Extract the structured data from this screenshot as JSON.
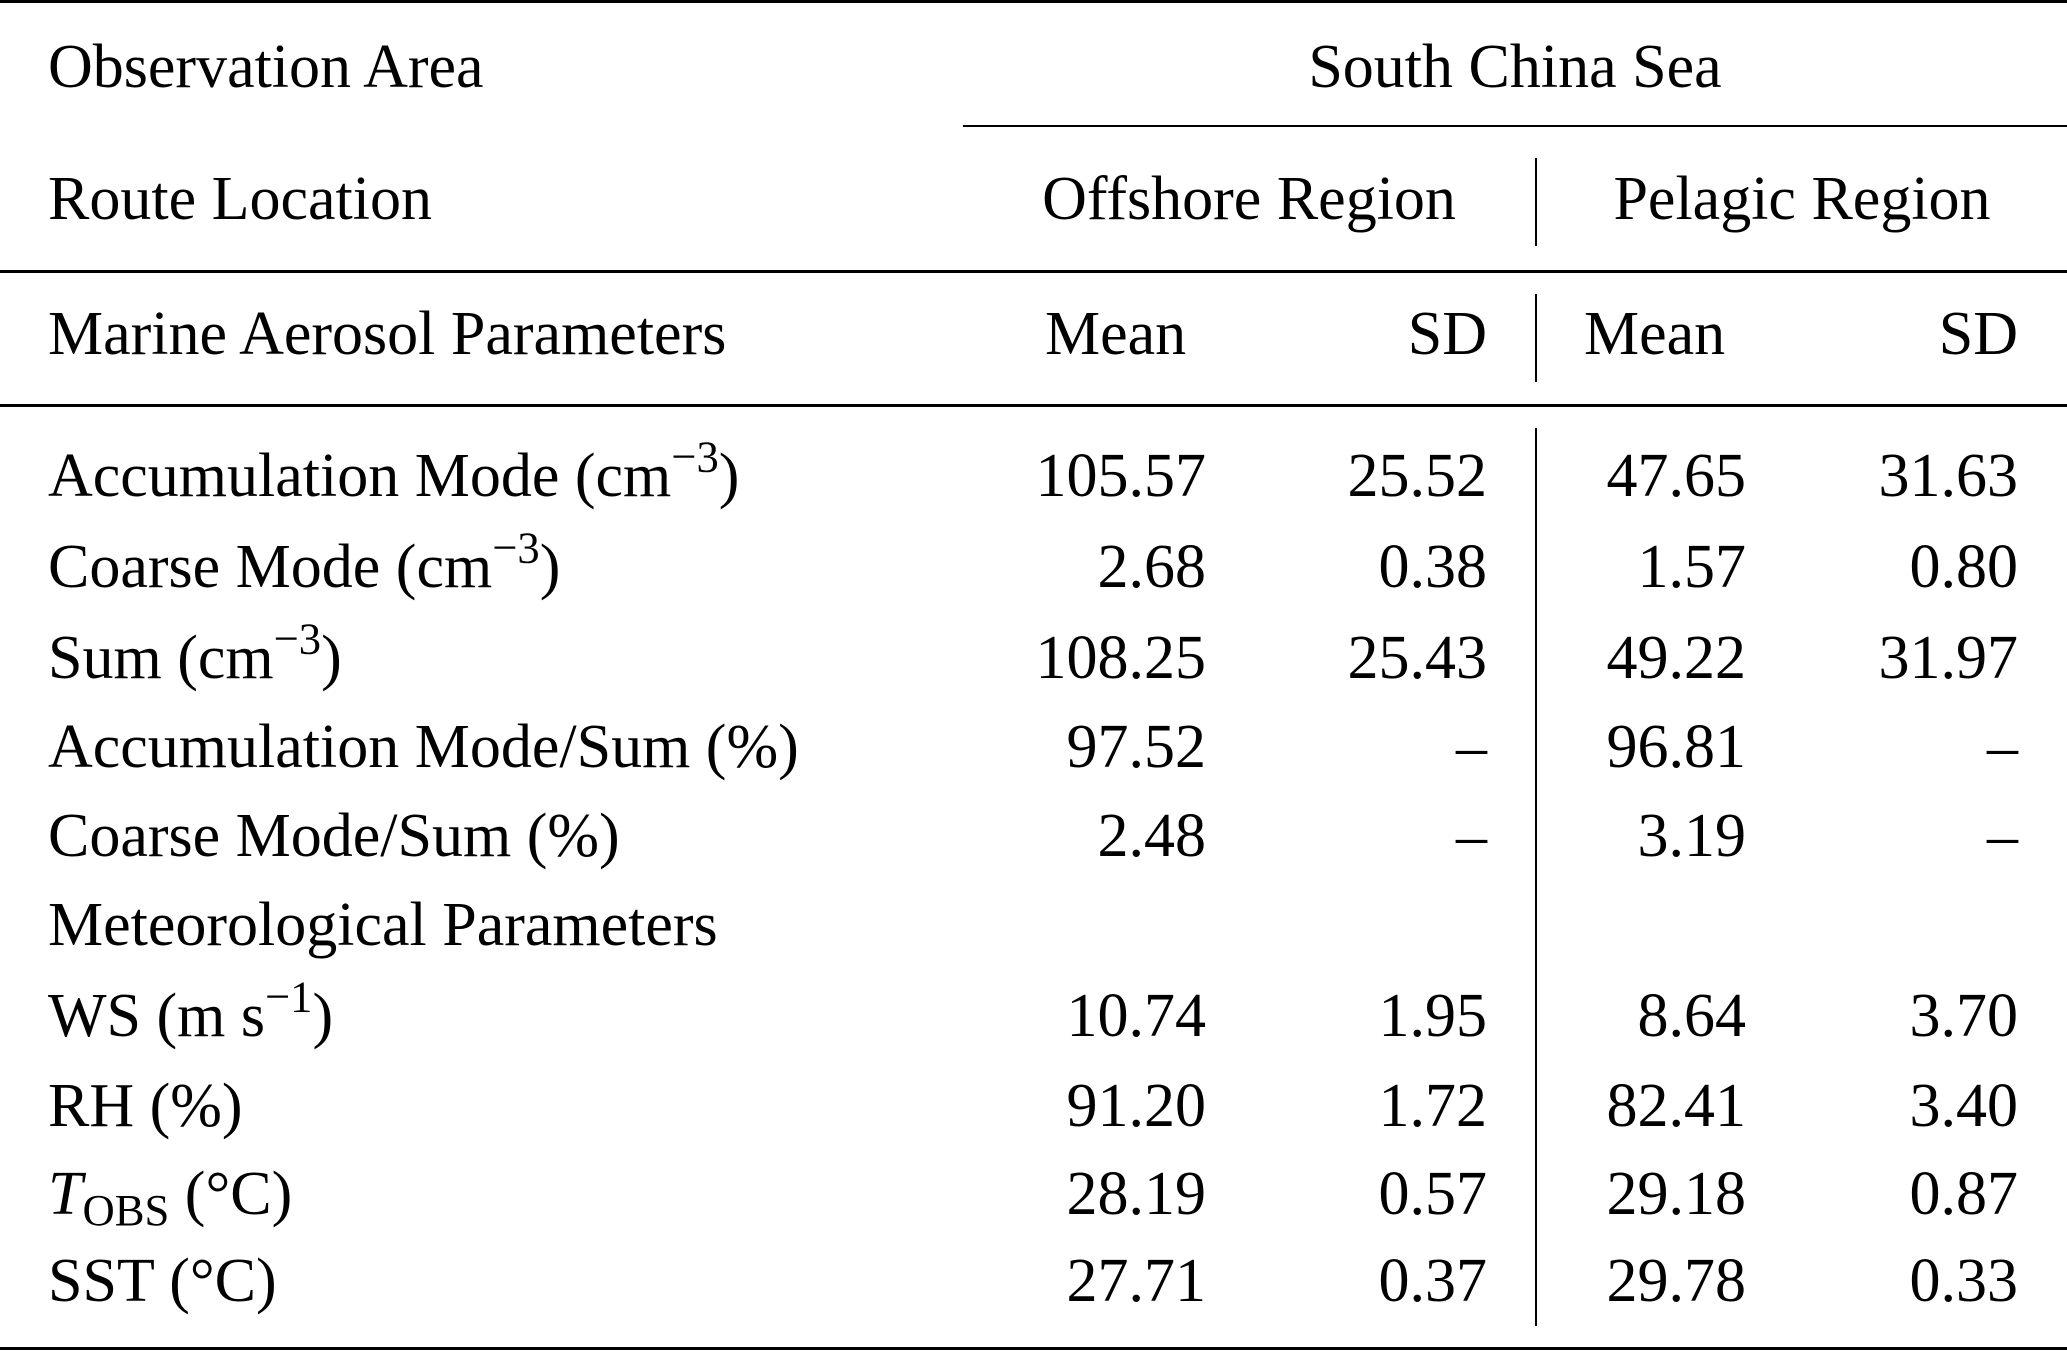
{
  "header": {
    "observation_area_label": "Observation Area",
    "observation_area_value": "South China Sea",
    "route_location_label": "Route Location",
    "offshore_label": "Offshore Region",
    "pelagic_label": "Pelagic Region",
    "params_label": "Marine Aerosol Parameters",
    "mean_label": "Mean",
    "sd_label": "SD"
  },
  "rows": [
    {
      "label_main": "Accumulation Mode (cm",
      "label_sup": "−3",
      "label_tail": ")",
      "off_mean": "105.57",
      "off_sd": "25.52",
      "pel_mean": "47.65",
      "pel_sd": "31.63"
    },
    {
      "label_main": "Coarse Mode (cm",
      "label_sup": "−3",
      "label_tail": ")",
      "off_mean": "2.68",
      "off_sd": "0.38",
      "pel_mean": "1.57",
      "pel_sd": "0.80"
    },
    {
      "label_main": "Sum (cm",
      "label_sup": "−3",
      "label_tail": ")",
      "off_mean": "108.25",
      "off_sd": "25.43",
      "pel_mean": "49.22",
      "pel_sd": "31.97"
    },
    {
      "label_main": "Accumulation Mode/Sum (%)",
      "off_mean": "97.52",
      "off_sd": "–",
      "pel_mean": "96.81",
      "pel_sd": "–"
    },
    {
      "label_main": "Coarse Mode/Sum (%)",
      "off_mean": "2.48",
      "off_sd": "–",
      "pel_mean": "3.19",
      "pel_sd": "–"
    },
    {
      "label_main": "Meteorological Parameters"
    },
    {
      "label_main": "WS (m s",
      "label_sup": "−1",
      "label_tail": ")",
      "off_mean": "10.74",
      "off_sd": "1.95",
      "pel_mean": "8.64",
      "pel_sd": "3.70"
    },
    {
      "label_main": "RH (%)",
      "off_mean": "91.20",
      "off_sd": "1.72",
      "pel_mean": "82.41",
      "pel_sd": "3.40"
    },
    {
      "label_ital": "T",
      "label_sub": "OBS",
      "label_tail": " (°C)",
      "off_mean": "28.19",
      "off_sd": "0.57",
      "pel_mean": "29.18",
      "pel_sd": "0.87"
    },
    {
      "label_main": "SST (°C)",
      "off_mean": "27.71",
      "off_sd": "0.37",
      "pel_mean": "29.78",
      "pel_sd": "0.33"
    }
  ]
}
